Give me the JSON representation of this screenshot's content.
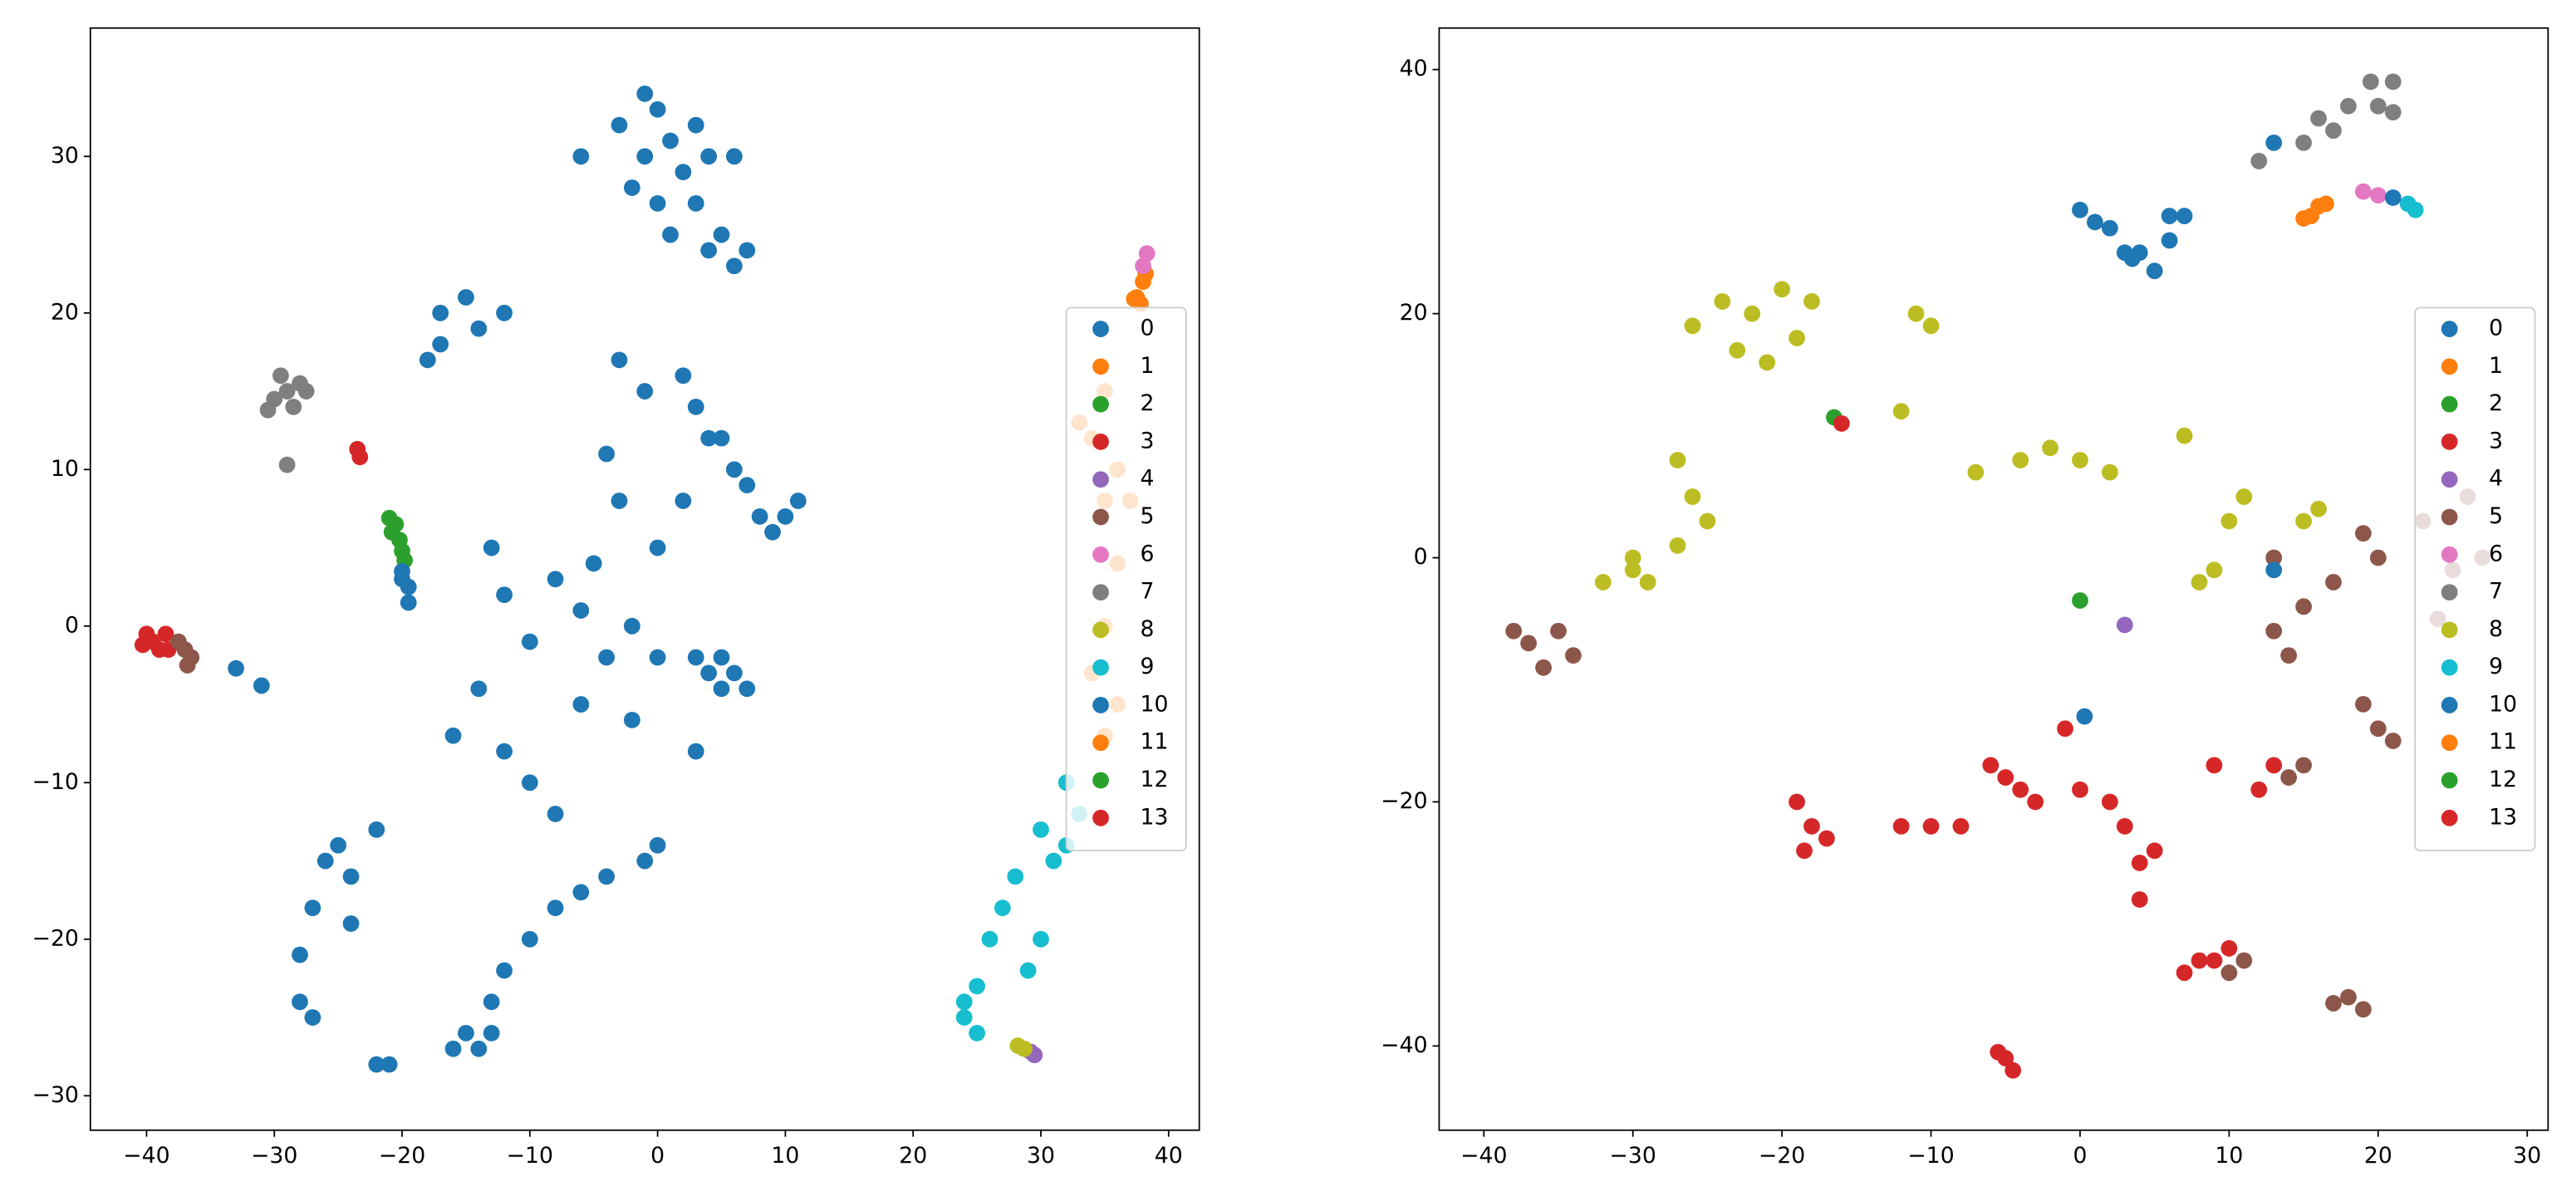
{
  "chart_data": [
    {
      "type": "scatter",
      "legend": "center right",
      "xlim": [
        -44.4,
        42.4
      ],
      "ylim": [
        -32.2,
        38.2
      ],
      "xticks": [
        {
          "value": -40,
          "label": "−40"
        },
        {
          "value": -30,
          "label": "−30"
        },
        {
          "value": -20,
          "label": "−20"
        },
        {
          "value": -10,
          "label": "−10"
        },
        0,
        10,
        20,
        30,
        40
      ],
      "yticks": [
        {
          "value": -30,
          "label": "−30"
        },
        {
          "value": -20,
          "label": "−20"
        },
        {
          "value": -10,
          "label": "−10"
        },
        0,
        10,
        20,
        30
      ],
      "series": [
        {
          "name": "0",
          "color": "#1f77b4",
          "x": [
            -1,
            0,
            1,
            -2,
            2,
            0,
            3,
            -1,
            1,
            4,
            6,
            5,
            7,
            -3,
            4,
            6,
            -6,
            3,
            -17,
            -15,
            -17,
            -18,
            -12,
            -14,
            5,
            7,
            8,
            9,
            10,
            11,
            6,
            4,
            -3,
            -1,
            2,
            -4,
            -3,
            -5,
            -6,
            -8,
            -10,
            -12,
            -14,
            -16,
            -12,
            -10,
            -8,
            -6,
            -4,
            -2,
            0,
            -2,
            0,
            2,
            3,
            -13,
            4,
            5,
            6,
            5,
            7,
            3,
            3,
            -8,
            -10,
            -12,
            -13,
            -6,
            -4,
            -1,
            0,
            -14,
            -15,
            -13,
            -16,
            -26,
            -25,
            -24,
            -22,
            -27,
            -28,
            -27,
            -28,
            -22,
            -21,
            -24,
            -33,
            -31,
            -19.5,
            -20
          ],
          "values": [
            30,
            33,
            31,
            28,
            29,
            27,
            32,
            34,
            25,
            24,
            23,
            25,
            24,
            32,
            30,
            30,
            30,
            27,
            20,
            21,
            18,
            17,
            20,
            19,
            12,
            9,
            7,
            6,
            7,
            8,
            10,
            12,
            17,
            15,
            16,
            11,
            8,
            4,
            1,
            3,
            -1,
            2,
            -4,
            -7,
            -8,
            -10,
            -12,
            -5,
            -2,
            0,
            -2,
            -6,
            5,
            8,
            14,
            5,
            -3,
            -4,
            -3,
            -2,
            -4,
            -2,
            -8,
            -18,
            -20,
            -22,
            -24,
            -17,
            -16,
            -15,
            -14,
            -27,
            -26,
            -26,
            -27,
            -15,
            -14,
            -16,
            -13,
            -18,
            -24,
            -25,
            -21,
            -28,
            -28,
            -19,
            -2.7,
            -3.8,
            1.5,
            3
          ]
        },
        {
          "name": "1",
          "color": "#ff7f0e",
          "x": [
            37.5,
            38,
            37.8,
            38.2,
            37.3
          ],
          "values": [
            21,
            22,
            20.6,
            22.5,
            20.9
          ]
        },
        {
          "name": "2",
          "color": "#2ca02c",
          "x": [
            -20.5,
            -20.2,
            -20,
            -19.8,
            -20.8
          ],
          "values": [
            6.5,
            5.5,
            4.8,
            4.2,
            6
          ]
        },
        {
          "name": "3",
          "color": "#d62728",
          "x": [
            -40,
            -39,
            -38.5,
            -39.5,
            -40.3,
            -38.3
          ],
          "values": [
            -0.5,
            -1.5,
            -0.5,
            -1,
            -1.2,
            -1.5
          ]
        },
        {
          "name": "4",
          "color": "#9467bd",
          "x": [
            29.5,
            29.2
          ],
          "values": [
            -27.4,
            -27.2
          ]
        },
        {
          "name": "5",
          "color": "#8c564b",
          "x": [
            -37,
            -36.5,
            -37.5,
            -36.8
          ],
          "values": [
            -1.5,
            -2,
            -1,
            -2.5
          ]
        },
        {
          "name": "6",
          "color": "#e377c2",
          "x": [
            38.3,
            38
          ],
          "values": [
            23.8,
            23
          ]
        },
        {
          "name": "7",
          "color": "#7f7f7f",
          "x": [
            -29,
            -30,
            -28,
            -29.5,
            -28.5,
            -30.5,
            -27.5,
            -29
          ],
          "values": [
            15,
            14.5,
            15.5,
            16,
            14,
            13.8,
            15,
            10.3
          ]
        },
        {
          "name": "8",
          "color": "#bcbd22",
          "x": [
            28.2,
            28.7
          ],
          "values": [
            -26.8,
            -27
          ]
        },
        {
          "name": "9",
          "color": "#17becf",
          "x": [
            24,
            25,
            26,
            27,
            28,
            24,
            25,
            29,
            30,
            31,
            33,
            32,
            30,
            32
          ],
          "values": [
            -25,
            -23,
            -20,
            -18,
            -16,
            -24,
            -26,
            -22,
            -20,
            -15,
            -12,
            -10,
            -13,
            -14
          ]
        },
        {
          "name": "10",
          "color": "#1f77b4",
          "x": [
            -20,
            -19.5
          ],
          "values": [
            3.5,
            2.5
          ]
        },
        {
          "name": "11",
          "color": "#ff7f0e",
          "x": [
            35,
            34,
            36,
            35,
            37,
            33,
            36,
            35,
            36,
            35,
            34
          ],
          "values": [
            15,
            12,
            10,
            8,
            8,
            13,
            4,
            0,
            -5,
            -7,
            -3
          ]
        },
        {
          "name": "12",
          "color": "#2ca02c",
          "x": [
            -21
          ],
          "values": [
            6.9
          ]
        },
        {
          "name": "13",
          "color": "#d62728",
          "x": [
            -23.5,
            -23.3
          ],
          "values": [
            11.3,
            10.8
          ]
        }
      ]
    },
    {
      "type": "scatter",
      "legend": "center right",
      "xlim": [
        -43,
        31.4
      ],
      "ylim": [
        -46.9,
        43.4
      ],
      "xticks": [
        {
          "value": -40,
          "label": "−40"
        },
        {
          "value": -30,
          "label": "−30"
        },
        {
          "value": -20,
          "label": "−20"
        },
        {
          "value": -10,
          "label": "−10"
        },
        0,
        10,
        20,
        30
      ],
      "yticks": [
        {
          "value": -40,
          "label": "−40"
        },
        {
          "value": -20,
          "label": "−20"
        },
        0,
        20,
        40
      ],
      "series": [
        {
          "name": "0",
          "color": "#1f77b4",
          "x": [
            0,
            1,
            2,
            3,
            4,
            6,
            7,
            6,
            5,
            3.5
          ],
          "values": [
            28.5,
            27.5,
            27,
            25,
            25,
            28,
            28,
            26,
            23.5,
            24.5
          ]
        },
        {
          "name": "1",
          "color": "#ff7f0e",
          "x": [
            15.5,
            16,
            15
          ],
          "values": [
            28,
            28.8,
            27.8
          ]
        },
        {
          "name": "2",
          "color": "#2ca02c",
          "x": [
            0
          ],
          "values": [
            -3.5
          ]
        },
        {
          "name": "3",
          "color": "#d62728",
          "x": [
            -18,
            -19,
            -17,
            -18.5,
            -10,
            -8,
            -12,
            -5,
            -6,
            -4,
            -3,
            0,
            2,
            4,
            5,
            3,
            4,
            9,
            8,
            10,
            7,
            -5,
            -4.5,
            -5.5
          ],
          "values": [
            -22,
            -20,
            -23,
            -24,
            -22,
            -22,
            -22,
            -18,
            -17,
            -19,
            -20,
            -19,
            -20,
            -25,
            -24,
            -22,
            -28,
            -33,
            -33,
            -32,
            -34,
            -41,
            -42,
            -40.5
          ]
        },
        {
          "name": "4",
          "color": "#9467bd",
          "x": [
            3
          ],
          "values": [
            -5.5
          ]
        },
        {
          "name": "5",
          "color": "#8c564b",
          "x": [
            -37,
            -36,
            -35,
            -38,
            -34,
            18,
            19,
            17,
            10,
            11,
            15,
            14,
            20,
            19,
            21,
            13,
            14,
            15,
            20,
            19,
            26,
            27,
            25,
            23,
            24,
            13,
            17
          ],
          "values": [
            -7,
            -9,
            -6,
            -6,
            -8,
            -36,
            -37,
            -36.5,
            -34,
            -33,
            -17,
            -18,
            -14,
            -12,
            -15,
            -6,
            -8,
            -4,
            0,
            2,
            5,
            0,
            -1,
            3,
            -5,
            0,
            -2
          ]
        },
        {
          "name": "6",
          "color": "#e377c2",
          "x": [
            19,
            20
          ],
          "values": [
            30,
            29.7
          ]
        },
        {
          "name": "7",
          "color": "#7f7f7f",
          "x": [
            16,
            17,
            18,
            15,
            20,
            21,
            19.5,
            21,
            12
          ],
          "values": [
            36,
            35,
            37,
            34,
            37,
            36.5,
            39,
            39,
            32.5
          ]
        },
        {
          "name": "8",
          "color": "#bcbd22",
          "x": [
            -22,
            -20,
            -24,
            -26,
            -18,
            -21,
            -23,
            -19,
            -11,
            -10,
            -27,
            -26,
            -25,
            -27,
            -30,
            -32,
            -29,
            -30,
            -2,
            0,
            -4,
            2,
            -7,
            10,
            11,
            16,
            15,
            9,
            8,
            -12,
            7
          ],
          "values": [
            20,
            22,
            21,
            19,
            21,
            16,
            17,
            18,
            20,
            19,
            8,
            5,
            3,
            1,
            -1,
            -2,
            -2,
            0,
            9,
            8,
            8,
            7,
            7,
            3,
            5,
            4,
            3,
            -1,
            -2,
            12,
            10
          ]
        },
        {
          "name": "9",
          "color": "#17becf",
          "x": [
            22,
            22.5
          ],
          "values": [
            29,
            28.5
          ]
        },
        {
          "name": "10",
          "color": "#1f77b4",
          "x": [
            13,
            0.3,
            13,
            21
          ],
          "values": [
            -1,
            -13,
            34,
            29.5
          ]
        },
        {
          "name": "11",
          "color": "#ff7f0e",
          "x": [
            16.5
          ],
          "values": [
            29
          ]
        },
        {
          "name": "12",
          "color": "#2ca02c",
          "x": [
            -16.5
          ],
          "values": [
            11.5
          ]
        },
        {
          "name": "13",
          "color": "#d62728",
          "x": [
            13,
            9,
            -16,
            -1,
            12
          ],
          "values": [
            -17,
            -17,
            11,
            -14,
            -19
          ]
        }
      ]
    }
  ]
}
